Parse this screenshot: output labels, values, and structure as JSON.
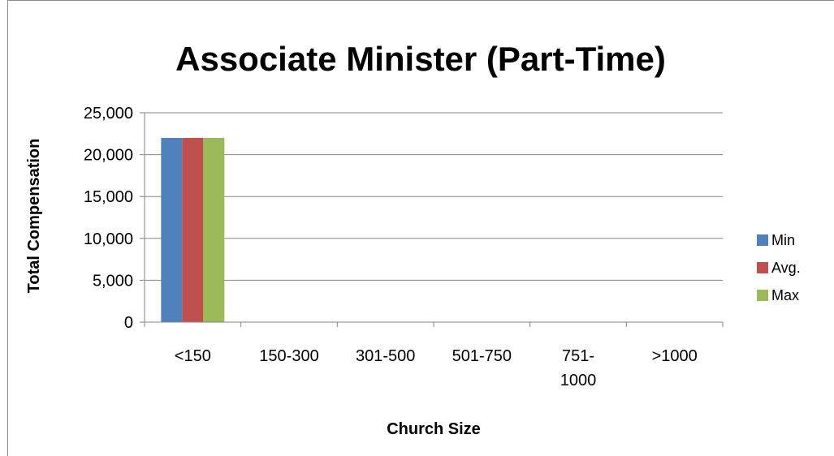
{
  "chart_data": {
    "type": "bar",
    "title": "Associate Minister (Part-Time)",
    "xlabel": "Church Size",
    "ylabel": "Total Compensation",
    "categories": [
      "<150",
      "150-300",
      "301-500",
      "501-750",
      "751-1000",
      ">1000"
    ],
    "category_labels": [
      [
        "<150"
      ],
      [
        "150-300"
      ],
      [
        "301-500"
      ],
      [
        "501-750"
      ],
      [
        "751-",
        "1000"
      ],
      [
        ">1000"
      ]
    ],
    "series": [
      {
        "name": "Min",
        "color": "#4f81bd",
        "values": [
          22000,
          0,
          0,
          0,
          0,
          0
        ]
      },
      {
        "name": "Avg.",
        "color": "#c0504d",
        "values": [
          22000,
          0,
          0,
          0,
          0,
          0
        ]
      },
      {
        "name": "Max",
        "color": "#9bbb59",
        "values": [
          22000,
          0,
          0,
          0,
          0,
          0
        ]
      }
    ],
    "ylim": [
      0,
      25000
    ],
    "yticks": [
      0,
      5000,
      10000,
      15000,
      20000,
      25000
    ],
    "ytick_labels": [
      "0",
      "5,000",
      "10,000",
      "15,000",
      "20,000",
      "25,000"
    ],
    "grid": true,
    "legend_position": "right"
  }
}
